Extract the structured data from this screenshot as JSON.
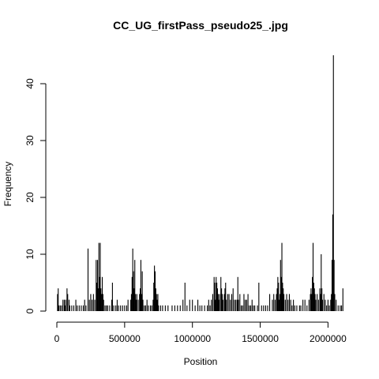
{
  "chart_data": {
    "type": "bar",
    "title": "CC_UG_firstPass_pseudo25_.jpg",
    "xlabel": "Position",
    "ylabel": "Frequency",
    "xlim": [
      0,
      2120000
    ],
    "ylim": [
      0,
      45
    ],
    "x_ticks": [
      0,
      500000,
      1000000,
      1500000,
      2000000
    ],
    "x_tick_labels": [
      "0",
      "500000",
      "1000000",
      "1500000",
      "2000000"
    ],
    "y_ticks": [
      0,
      10,
      20,
      30,
      40
    ],
    "y_tick_labels": [
      "0",
      "10",
      "20",
      "30",
      "40"
    ],
    "grid": false,
    "legend": "none",
    "bar_color": "#000000",
    "points": [
      [
        5000,
        3
      ],
      [
        10000,
        4
      ],
      [
        15000,
        1
      ],
      [
        25000,
        1
      ],
      [
        35000,
        1
      ],
      [
        45000,
        2
      ],
      [
        55000,
        2
      ],
      [
        60000,
        1
      ],
      [
        65000,
        2
      ],
      [
        75000,
        4
      ],
      [
        80000,
        3
      ],
      [
        90000,
        2
      ],
      [
        95000,
        1
      ],
      [
        110000,
        1
      ],
      [
        125000,
        1
      ],
      [
        140000,
        2
      ],
      [
        150000,
        1
      ],
      [
        165000,
        1
      ],
      [
        180000,
        1
      ],
      [
        195000,
        1
      ],
      [
        205000,
        2
      ],
      [
        215000,
        1
      ],
      [
        230000,
        11
      ],
      [
        240000,
        2
      ],
      [
        250000,
        3
      ],
      [
        260000,
        2
      ],
      [
        270000,
        3
      ],
      [
        280000,
        2
      ],
      [
        290000,
        9
      ],
      [
        295000,
        5
      ],
      [
        300000,
        9
      ],
      [
        305000,
        4
      ],
      [
        310000,
        12
      ],
      [
        315000,
        6
      ],
      [
        320000,
        12
      ],
      [
        325000,
        4
      ],
      [
        330000,
        3
      ],
      [
        335000,
        6
      ],
      [
        340000,
        3
      ],
      [
        345000,
        2
      ],
      [
        355000,
        1
      ],
      [
        365000,
        1
      ],
      [
        375000,
        1
      ],
      [
        390000,
        1
      ],
      [
        405000,
        2
      ],
      [
        410000,
        5
      ],
      [
        420000,
        1
      ],
      [
        435000,
        1
      ],
      [
        445000,
        2
      ],
      [
        455000,
        1
      ],
      [
        470000,
        1
      ],
      [
        485000,
        1
      ],
      [
        500000,
        1
      ],
      [
        515000,
        1
      ],
      [
        525000,
        2
      ],
      [
        545000,
        2
      ],
      [
        550000,
        3
      ],
      [
        555000,
        6
      ],
      [
        560000,
        11
      ],
      [
        565000,
        7
      ],
      [
        570000,
        4
      ],
      [
        575000,
        9
      ],
      [
        580000,
        3
      ],
      [
        585000,
        2
      ],
      [
        590000,
        3
      ],
      [
        600000,
        2
      ],
      [
        610000,
        3
      ],
      [
        615000,
        4
      ],
      [
        620000,
        9
      ],
      [
        625000,
        3
      ],
      [
        630000,
        7
      ],
      [
        635000,
        2
      ],
      [
        645000,
        1
      ],
      [
        655000,
        1
      ],
      [
        665000,
        2
      ],
      [
        675000,
        1
      ],
      [
        690000,
        1
      ],
      [
        700000,
        1
      ],
      [
        710000,
        2
      ],
      [
        715000,
        5
      ],
      [
        720000,
        8
      ],
      [
        725000,
        7
      ],
      [
        730000,
        4
      ],
      [
        735000,
        3
      ],
      [
        740000,
        2
      ],
      [
        745000,
        3
      ],
      [
        750000,
        1
      ],
      [
        765000,
        1
      ],
      [
        780000,
        1
      ],
      [
        800000,
        1
      ],
      [
        820000,
        1
      ],
      [
        850000,
        1
      ],
      [
        870000,
        1
      ],
      [
        890000,
        1
      ],
      [
        910000,
        1
      ],
      [
        930000,
        2
      ],
      [
        945000,
        5
      ],
      [
        960000,
        1
      ],
      [
        980000,
        2
      ],
      [
        1000000,
        2
      ],
      [
        1020000,
        1
      ],
      [
        1040000,
        2
      ],
      [
        1055000,
        1
      ],
      [
        1070000,
        1
      ],
      [
        1090000,
        1
      ],
      [
        1110000,
        1
      ],
      [
        1120000,
        2
      ],
      [
        1130000,
        1
      ],
      [
        1140000,
        2
      ],
      [
        1150000,
        3
      ],
      [
        1160000,
        6
      ],
      [
        1165000,
        5
      ],
      [
        1170000,
        2
      ],
      [
        1175000,
        6
      ],
      [
        1180000,
        5
      ],
      [
        1185000,
        4
      ],
      [
        1190000,
        3
      ],
      [
        1195000,
        2
      ],
      [
        1200000,
        3
      ],
      [
        1210000,
        6
      ],
      [
        1215000,
        4
      ],
      [
        1220000,
        3
      ],
      [
        1225000,
        2
      ],
      [
        1235000,
        3
      ],
      [
        1240000,
        4
      ],
      [
        1245000,
        5
      ],
      [
        1250000,
        2
      ],
      [
        1260000,
        3
      ],
      [
        1270000,
        3
      ],
      [
        1280000,
        2
      ],
      [
        1290000,
        3
      ],
      [
        1300000,
        4
      ],
      [
        1310000,
        2
      ],
      [
        1320000,
        2
      ],
      [
        1330000,
        2
      ],
      [
        1335000,
        6
      ],
      [
        1340000,
        2
      ],
      [
        1350000,
        3
      ],
      [
        1360000,
        1
      ],
      [
        1370000,
        1
      ],
      [
        1380000,
        3
      ],
      [
        1390000,
        2
      ],
      [
        1400000,
        2
      ],
      [
        1410000,
        3
      ],
      [
        1420000,
        1
      ],
      [
        1430000,
        1
      ],
      [
        1440000,
        2
      ],
      [
        1450000,
        1
      ],
      [
        1460000,
        1
      ],
      [
        1480000,
        1
      ],
      [
        1490000,
        5
      ],
      [
        1510000,
        1
      ],
      [
        1525000,
        1
      ],
      [
        1540000,
        1
      ],
      [
        1555000,
        1
      ],
      [
        1570000,
        3
      ],
      [
        1590000,
        2
      ],
      [
        1600000,
        3
      ],
      [
        1610000,
        2
      ],
      [
        1620000,
        3
      ],
      [
        1625000,
        4
      ],
      [
        1630000,
        6
      ],
      [
        1635000,
        5
      ],
      [
        1640000,
        2
      ],
      [
        1645000,
        3
      ],
      [
        1650000,
        9
      ],
      [
        1655000,
        6
      ],
      [
        1660000,
        12
      ],
      [
        1665000,
        5
      ],
      [
        1670000,
        4
      ],
      [
        1675000,
        3
      ],
      [
        1685000,
        2
      ],
      [
        1695000,
        3
      ],
      [
        1705000,
        2
      ],
      [
        1715000,
        3
      ],
      [
        1725000,
        2
      ],
      [
        1735000,
        1
      ],
      [
        1745000,
        2
      ],
      [
        1755000,
        1
      ],
      [
        1770000,
        1
      ],
      [
        1790000,
        1
      ],
      [
        1800000,
        1
      ],
      [
        1815000,
        2
      ],
      [
        1830000,
        2
      ],
      [
        1845000,
        1
      ],
      [
        1860000,
        2
      ],
      [
        1870000,
        3
      ],
      [
        1875000,
        4
      ],
      [
        1880000,
        3
      ],
      [
        1885000,
        6
      ],
      [
        1890000,
        12
      ],
      [
        1895000,
        5
      ],
      [
        1900000,
        4
      ],
      [
        1905000,
        3
      ],
      [
        1910000,
        2
      ],
      [
        1920000,
        3
      ],
      [
        1930000,
        2
      ],
      [
        1940000,
        4
      ],
      [
        1945000,
        3
      ],
      [
        1950000,
        10
      ],
      [
        1955000,
        4
      ],
      [
        1960000,
        2
      ],
      [
        1970000,
        3
      ],
      [
        1980000,
        2
      ],
      [
        1990000,
        1
      ],
      [
        2000000,
        2
      ],
      [
        2010000,
        1
      ],
      [
        2020000,
        2
      ],
      [
        2025000,
        3
      ],
      [
        2030000,
        9
      ],
      [
        2035000,
        17
      ],
      [
        2040000,
        45
      ],
      [
        2045000,
        9
      ],
      [
        2050000,
        3
      ],
      [
        2060000,
        2
      ],
      [
        2075000,
        1
      ],
      [
        2090000,
        1
      ],
      [
        2100000,
        1
      ],
      [
        2110000,
        4
      ]
    ]
  }
}
